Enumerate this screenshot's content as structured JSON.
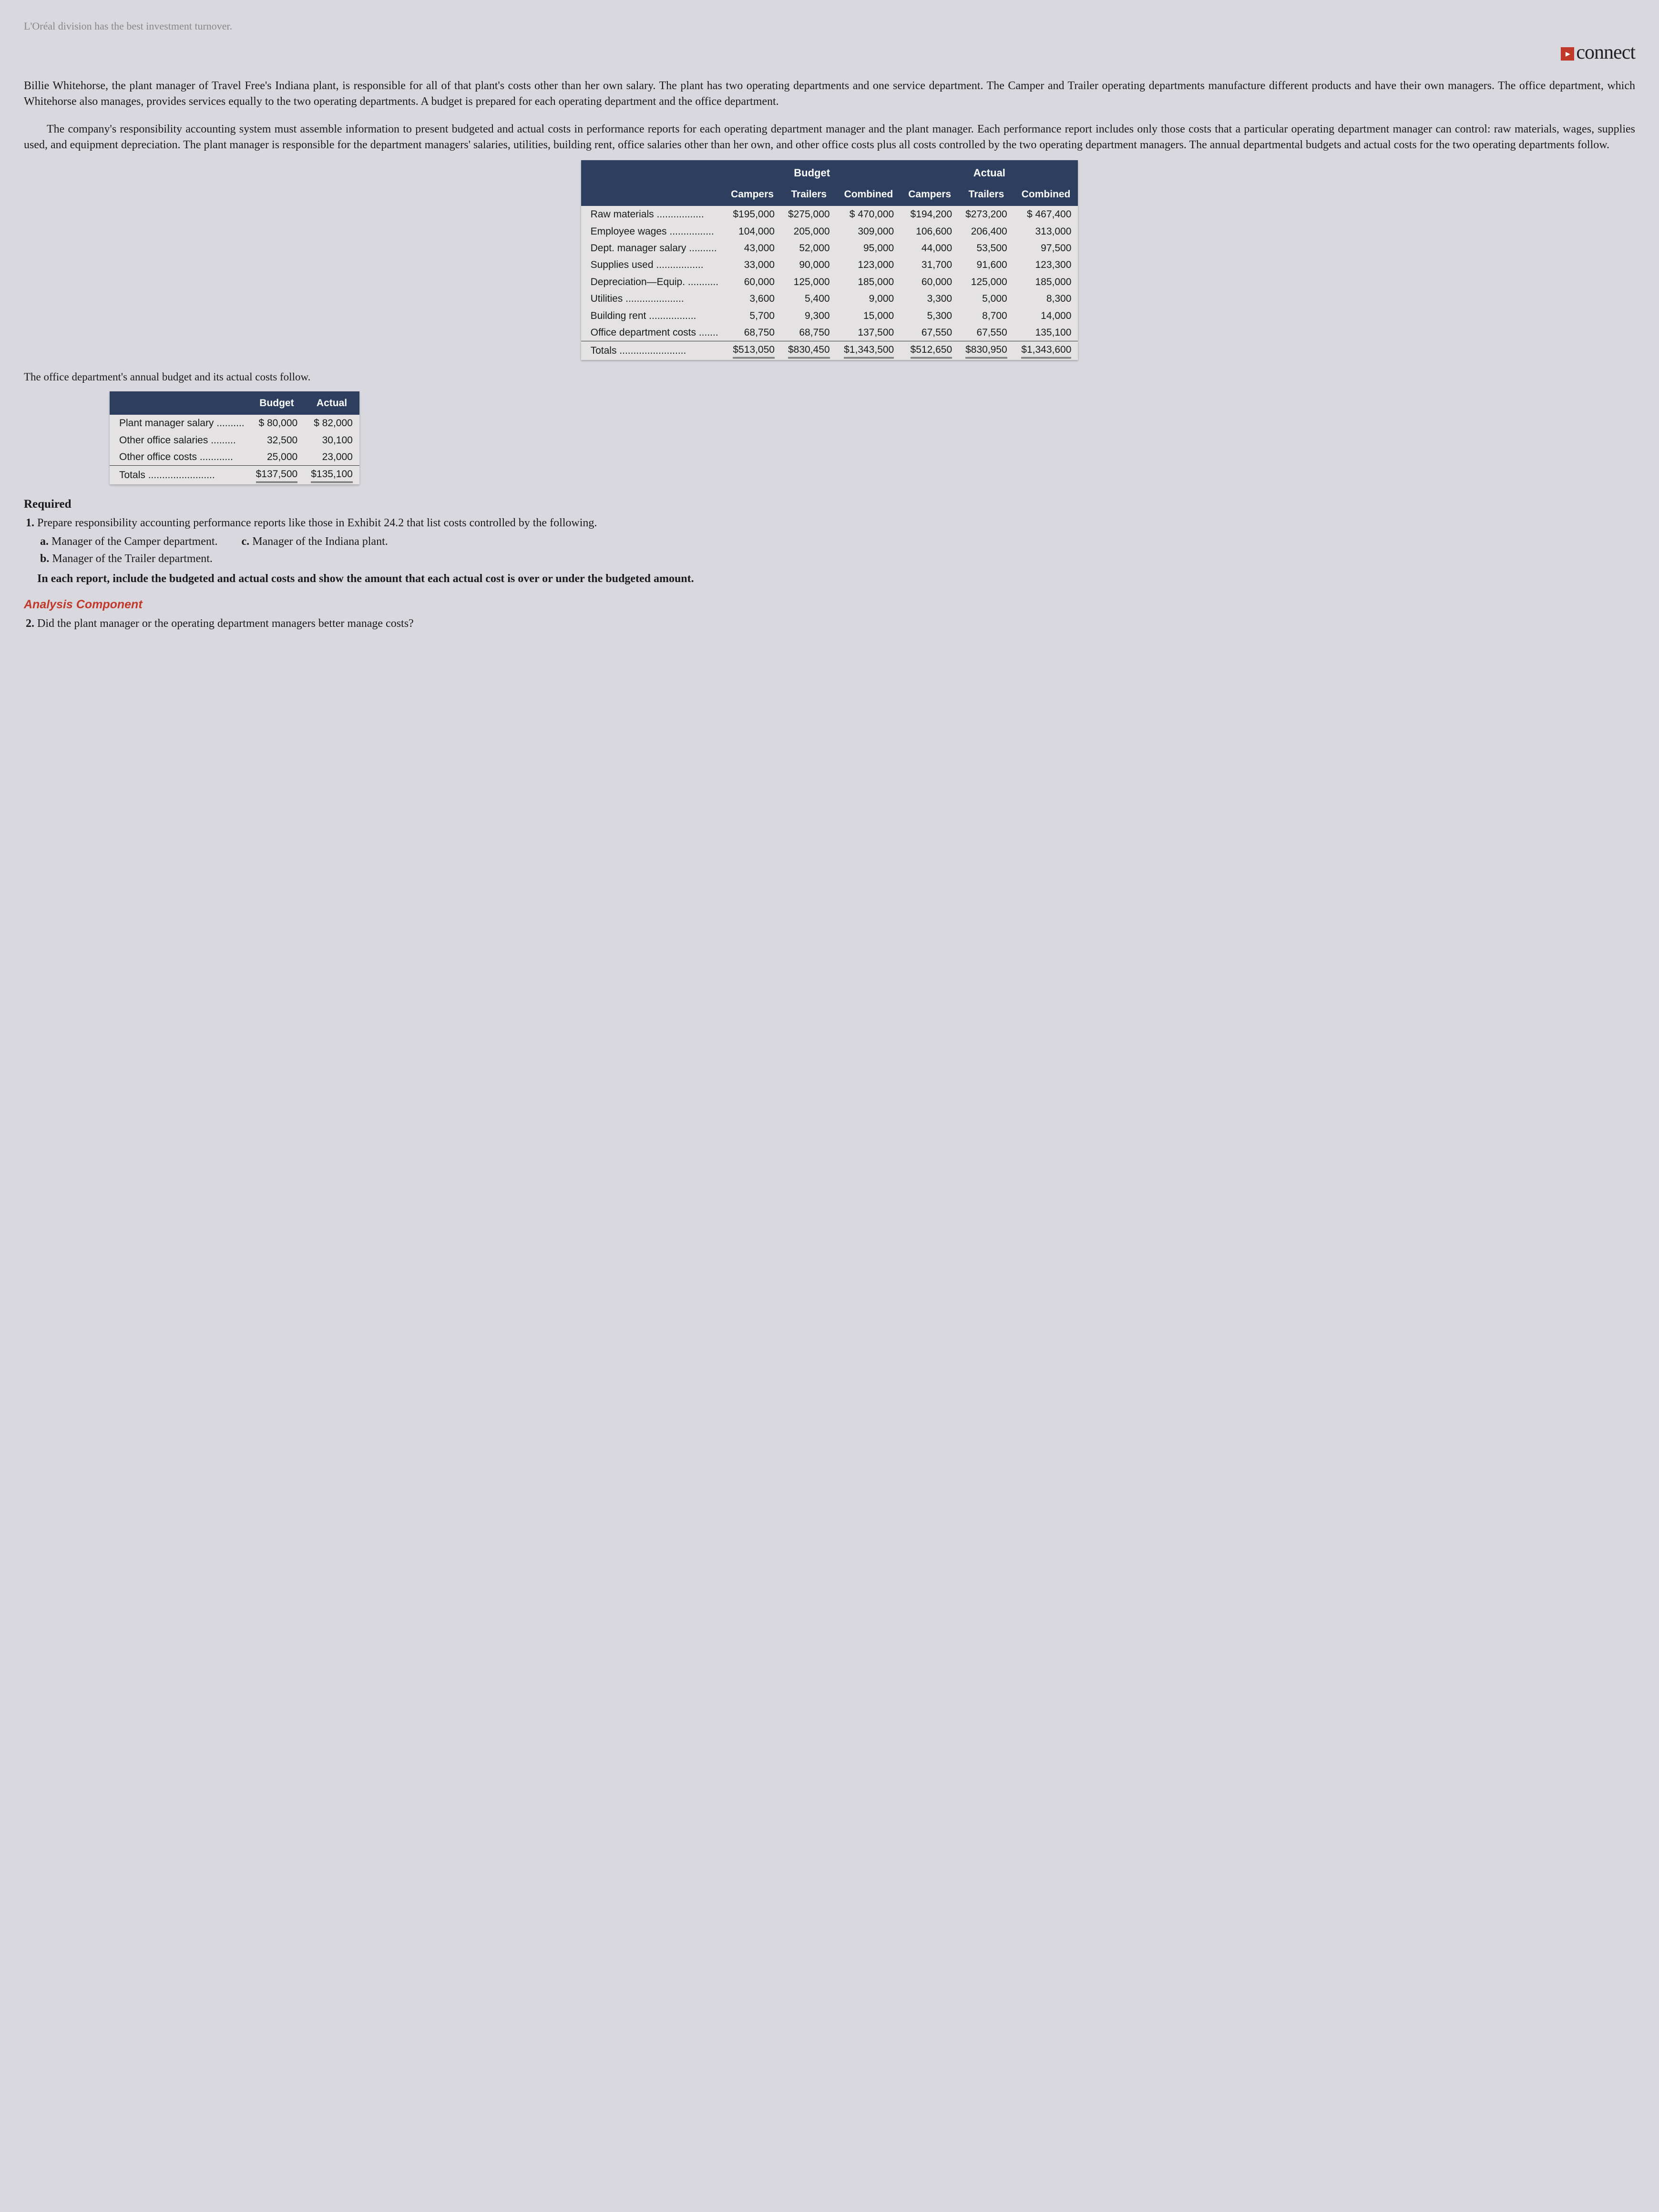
{
  "top_faded": "L'Oréal division has the best investment turnover.",
  "brand": "connect",
  "p1": "Billie Whitehorse, the plant manager of Travel Free's Indiana plant, is responsible for all of that plant's costs other than her own salary. The plant has two operating departments and one service department. The Camper and Trailer operating departments manufacture different products and have their own managers. The office department, which Whitehorse also manages, provides services equally to the two operating departments. A budget is prepared for each operating department and the office department.",
  "p2": "The company's responsibility accounting system must assemble information to present budgeted and actual costs in performance reports for each operating department manager and the plant manager. Each performance report includes only those costs that a particular operating department manager can control: raw materials, wages, supplies used, and equipment depreciation. The plant manager is responsible for the department managers' salaries, utilities, building rent, office salaries other than her own, and other office costs plus all costs controlled by the two operating department managers. The annual departmental budgets and actual costs for the two operating departments follow.",
  "t1": {
    "group1": "Budget",
    "group2": "Actual",
    "cols": [
      "Campers",
      "Trailers",
      "Combined",
      "Campers",
      "Trailers",
      "Combined"
    ],
    "rows": [
      {
        "label": "Raw materials",
        "v": [
          "$195,000",
          "$275,000",
          "$ 470,000",
          "$194,200",
          "$273,200",
          "$ 467,400"
        ]
      },
      {
        "label": "Employee wages",
        "v": [
          "104,000",
          "205,000",
          "309,000",
          "106,600",
          "206,400",
          "313,000"
        ]
      },
      {
        "label": "Dept. manager salary",
        "v": [
          "43,000",
          "52,000",
          "95,000",
          "44,000",
          "53,500",
          "97,500"
        ]
      },
      {
        "label": "Supplies used",
        "v": [
          "33,000",
          "90,000",
          "123,000",
          "31,700",
          "91,600",
          "123,300"
        ]
      },
      {
        "label": "Depreciation—Equip.",
        "v": [
          "60,000",
          "125,000",
          "185,000",
          "60,000",
          "125,000",
          "185,000"
        ]
      },
      {
        "label": "Utilities",
        "v": [
          "3,600",
          "5,400",
          "9,000",
          "3,300",
          "5,000",
          "8,300"
        ]
      },
      {
        "label": "Building rent",
        "v": [
          "5,700",
          "9,300",
          "15,000",
          "5,300",
          "8,700",
          "14,000"
        ]
      },
      {
        "label": "Office department costs",
        "v": [
          "68,750",
          "68,750",
          "137,500",
          "67,550",
          "67,550",
          "135,100"
        ],
        "underline": true
      }
    ],
    "totals": {
      "label": "Totals",
      "v": [
        "$513,050",
        "$830,450",
        "$1,343,500",
        "$512,650",
        "$830,950",
        "$1,343,600"
      ]
    }
  },
  "sub1": "The office department's annual budget and its actual costs follow.",
  "t2": {
    "cols": [
      "Budget",
      "Actual"
    ],
    "rows": [
      {
        "label": "Plant manager salary",
        "v": [
          "$ 80,000",
          "$ 82,000"
        ]
      },
      {
        "label": "Other office salaries",
        "v": [
          "32,500",
          "30,100"
        ]
      },
      {
        "label": "Other office costs",
        "v": [
          "25,000",
          "23,000"
        ],
        "underline": true
      }
    ],
    "totals": {
      "label": "Totals",
      "v": [
        "$137,500",
        "$135,100"
      ]
    }
  },
  "required_label": "Required",
  "req1": "Prepare responsibility accounting performance reports like those in Exhibit 24.2 that list costs controlled by the following.",
  "req1a": "Manager of the Camper department.",
  "req1b": "Manager of the Trailer department.",
  "req1c": "Manager of the Indiana plant.",
  "req1_footer": "In each report, include the budgeted and actual costs and show the amount that each actual cost is over or under the budgeted amount.",
  "analysis_label": "Analysis Component",
  "req2": "Did the plant manager or the operating department managers better manage costs?"
}
